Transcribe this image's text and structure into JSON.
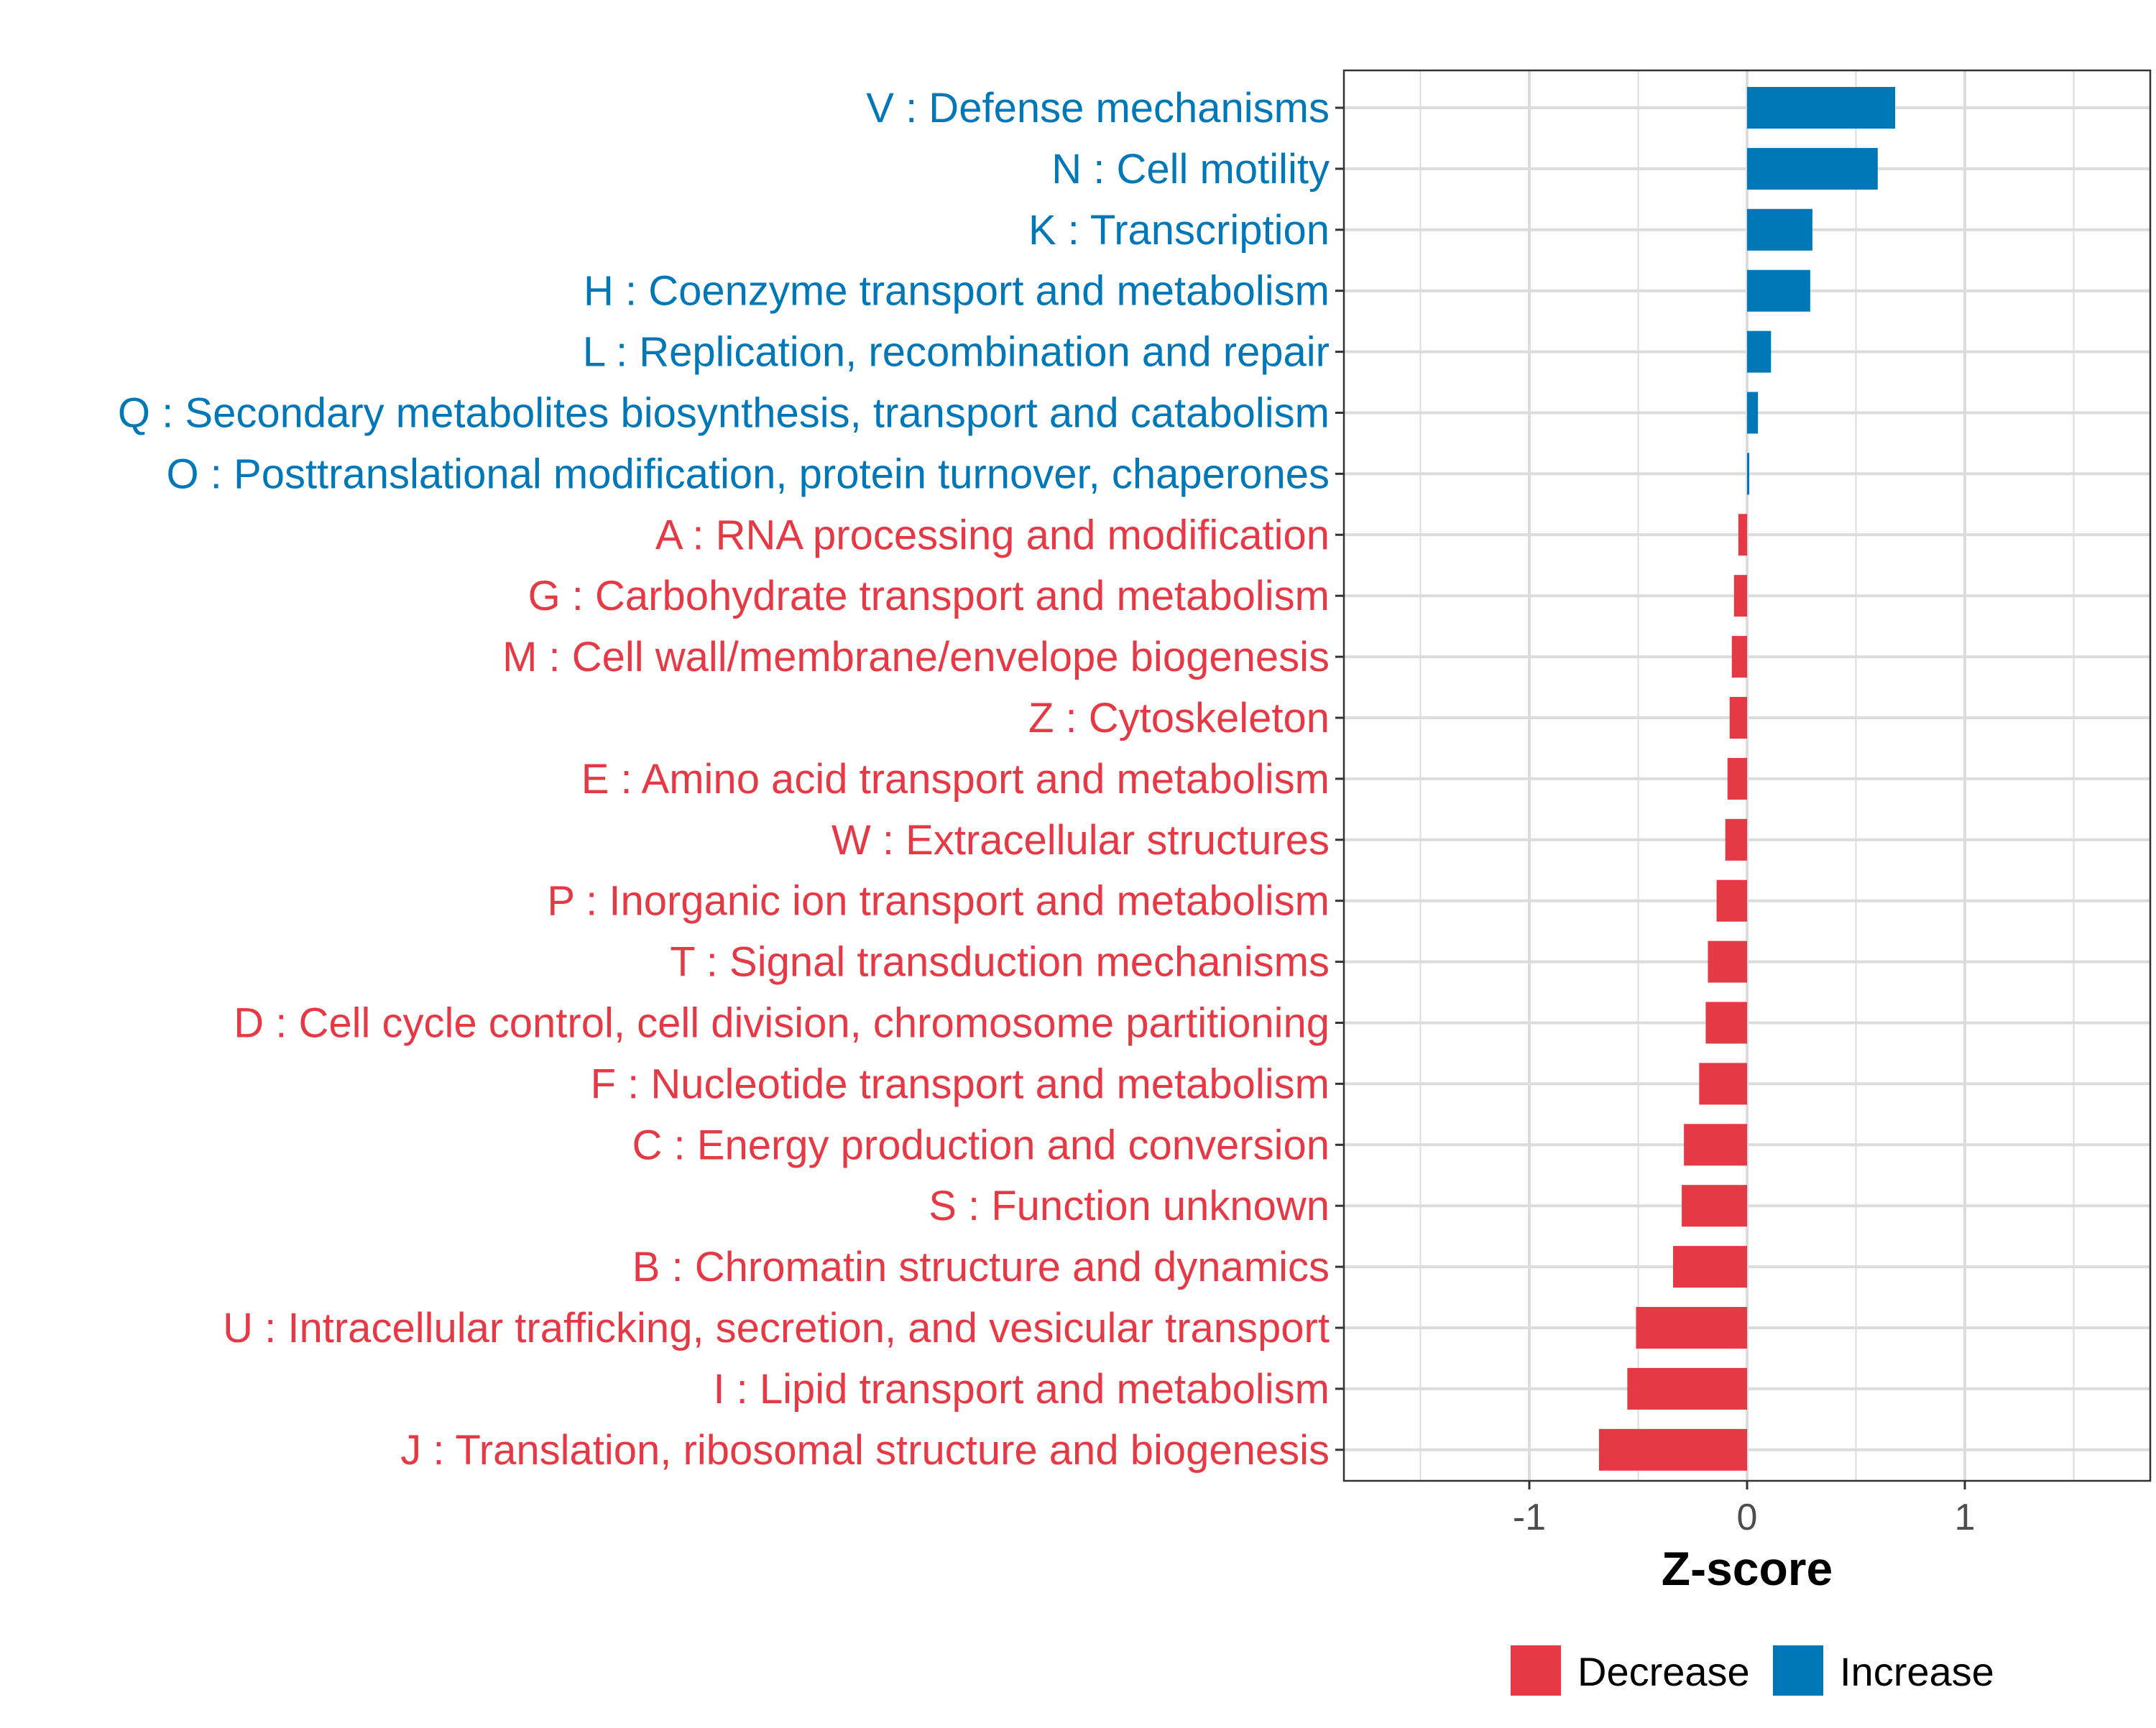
{
  "chart_data": {
    "type": "bar",
    "orientation": "horizontal",
    "xlabel": "Z-score",
    "xlim": [
      -1.85,
      1.85
    ],
    "xticks": [
      -1,
      0,
      1
    ],
    "xtick_labels": [
      "-1",
      "0",
      "1"
    ],
    "grid": true,
    "legend_position": "bottom",
    "colors": {
      "Decrease": "#E63946",
      "Increase": "#0077B6"
    },
    "legend": [
      {
        "name": "Decrease",
        "color": "#E63946"
      },
      {
        "name": "Increase",
        "color": "#0077B6"
      }
    ],
    "categories": [
      "V : Defense mechanisms",
      "N : Cell motility",
      "K : Transcription",
      "H : Coenzyme transport and metabolism",
      "L : Replication, recombination and repair",
      "Q : Secondary metabolites biosynthesis, transport and catabolism",
      "O : Posttranslational modification, protein turnover, chaperones",
      "A : RNA processing and modification",
      "G : Carbohydrate transport and metabolism",
      "M : Cell wall/membrane/envelope biogenesis",
      "Z : Cytoskeleton",
      "E : Amino acid transport and metabolism",
      "W : Extracellular structures",
      "P : Inorganic ion transport and metabolism",
      "T : Signal transduction mechanisms",
      "D : Cell cycle control, cell division, chromosome partitioning",
      "F : Nucleotide transport and metabolism",
      "C : Energy production and conversion",
      "S : Function unknown",
      "B : Chromatin structure and dynamics",
      "U : Intracellular trafficking, secretion, and vesicular transport",
      "I : Lipid transport and metabolism",
      "J : Translation, ribosomal structure and biogenesis"
    ],
    "values": [
      0.68,
      0.6,
      0.3,
      0.29,
      0.11,
      0.05,
      0.01,
      -0.04,
      -0.06,
      -0.07,
      -0.08,
      -0.09,
      -0.1,
      -0.14,
      -0.18,
      -0.19,
      -0.22,
      -0.29,
      -0.3,
      -0.34,
      -0.51,
      -0.55,
      -0.68
    ],
    "groups": [
      "Increase",
      "Increase",
      "Increase",
      "Increase",
      "Increase",
      "Increase",
      "Increase",
      "Decrease",
      "Decrease",
      "Decrease",
      "Decrease",
      "Decrease",
      "Decrease",
      "Decrease",
      "Decrease",
      "Decrease",
      "Decrease",
      "Decrease",
      "Decrease",
      "Decrease",
      "Decrease",
      "Decrease",
      "Decrease"
    ]
  }
}
